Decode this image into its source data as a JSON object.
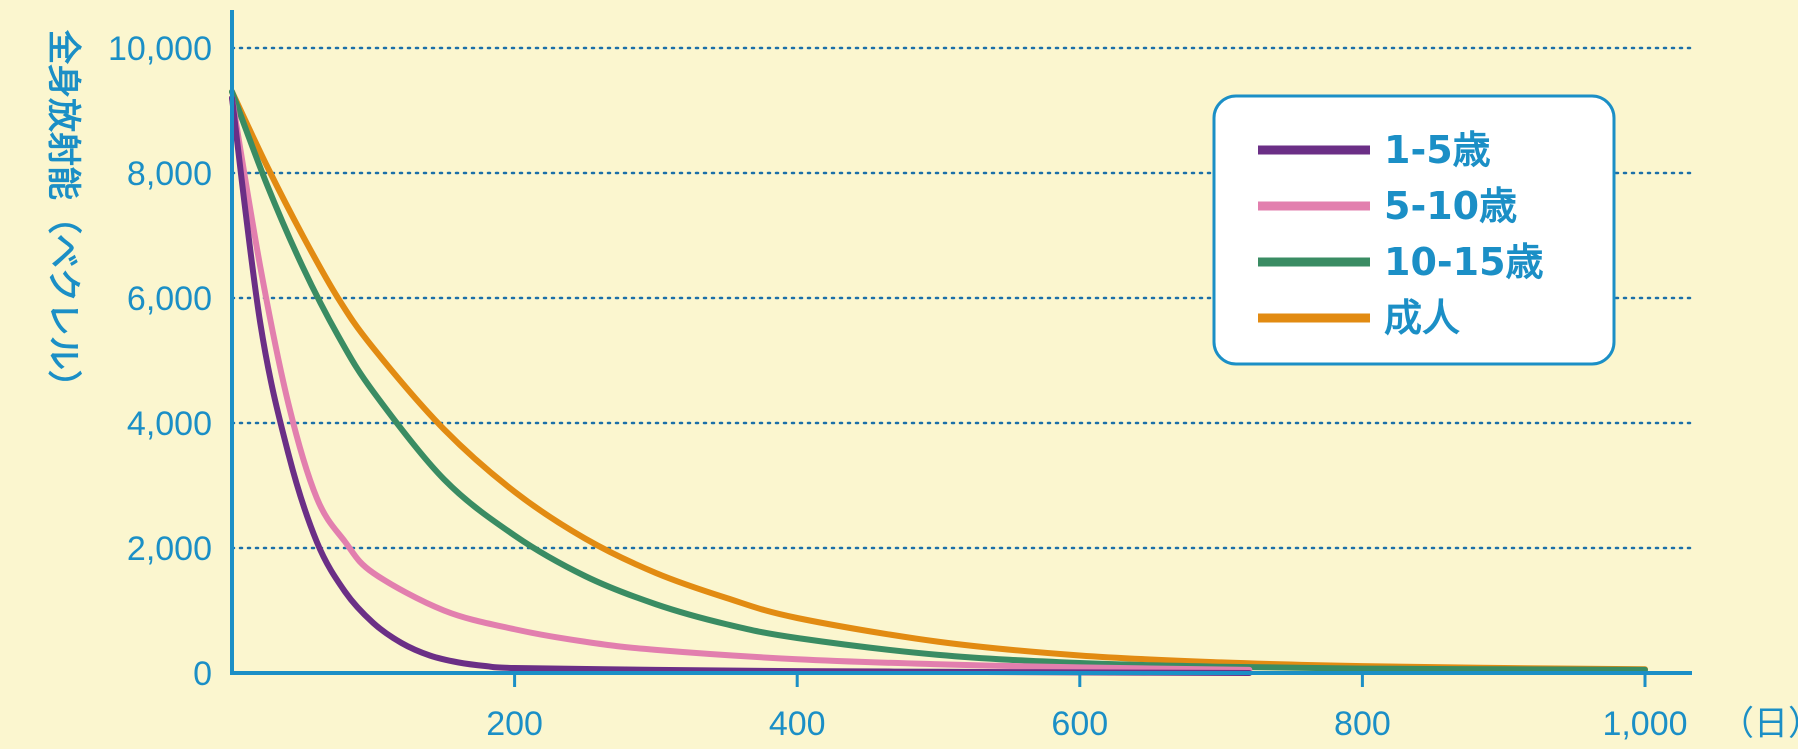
{
  "chart_data": {
    "type": "line",
    "title": "",
    "ylabel": "全身放射能（ベクレル）",
    "xunit": "（日）",
    "xlim": [
      0,
      1000
    ],
    "ylim": [
      0,
      10000
    ],
    "grid": "horizontal dotted",
    "legend_position": "top-right",
    "xticks": [
      200,
      400,
      600,
      800,
      1000
    ],
    "xtick_labels": [
      "200",
      "400",
      "600",
      "800",
      "1,000"
    ],
    "yticks": [
      0,
      2000,
      4000,
      6000,
      8000,
      10000
    ],
    "ytick_labels": [
      "0",
      "2,000",
      "4,000",
      "6,000",
      "8,000",
      "10,000"
    ],
    "series": [
      {
        "name": "1-5歳",
        "color": "#6b2f86",
        "x": [
          0,
          20,
          40,
          60,
          80,
          100,
          120,
          140,
          160,
          180,
          200,
          300,
          400,
          500,
          600,
          720
        ],
        "y": [
          9200,
          5600,
          3500,
          2100,
          1300,
          800,
          480,
          280,
          170,
          110,
          80,
          50,
          30,
          20,
          10,
          0
        ]
      },
      {
        "name": "5-10歳",
        "color": "#e27fae",
        "x": [
          0,
          20,
          40,
          60,
          80,
          100,
          150,
          200,
          250,
          300,
          400,
          500,
          600,
          720
        ],
        "y": [
          9200,
          6500,
          4300,
          2800,
          2100,
          1600,
          1000,
          700,
          500,
          370,
          220,
          140,
          90,
          50
        ]
      },
      {
        "name": "10-15歳",
        "color": "#3a8c63",
        "x": [
          0,
          25,
          50,
          75,
          100,
          150,
          200,
          250,
          300,
          350,
          400,
          500,
          600,
          700,
          800,
          900,
          1000
        ],
        "y": [
          9300,
          7800,
          6500,
          5400,
          4500,
          3100,
          2200,
          1550,
          1100,
          780,
          560,
          290,
          160,
          100,
          70,
          60,
          50
        ]
      },
      {
        "name": "成人",
        "color": "#e28b12",
        "x": [
          0,
          25,
          50,
          75,
          100,
          150,
          200,
          250,
          300,
          350,
          400,
          500,
          600,
          700,
          800,
          900,
          1000
        ],
        "y": [
          9300,
          8100,
          7000,
          6000,
          5200,
          3900,
          2900,
          2150,
          1600,
          1200,
          880,
          500,
          280,
          170,
          110,
          80,
          60
        ]
      }
    ]
  },
  "colors": {
    "background": "#fbf6cf",
    "axis": "#1b8fc6",
    "grid": "#1b6fa8"
  }
}
